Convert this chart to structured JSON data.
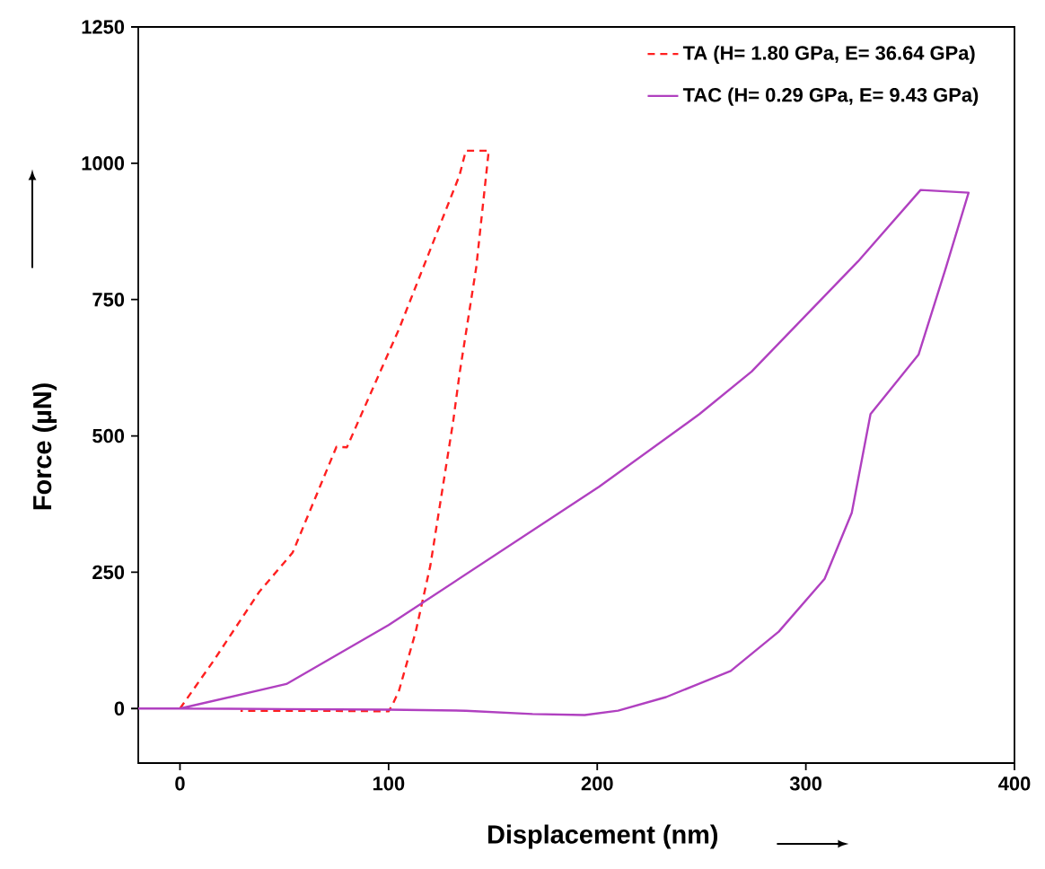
{
  "chart_data": {
    "type": "line",
    "xlabel": "Displacement (nm)",
    "ylabel": "Force (µN)",
    "xlim": [
      -20,
      400
    ],
    "ylim": [
      -100,
      1250
    ],
    "xticks": [
      0,
      100,
      200,
      300,
      400
    ],
    "yticks": [
      0,
      250,
      500,
      750,
      1000,
      1250
    ],
    "grid": false,
    "legend": "top right",
    "marker": "none",
    "series": [
      {
        "name": "TA  (H= 1.80 GPa, E= 36.64 GPa)",
        "color": "#ff2020",
        "line_style": "dashed",
        "x": [
          0,
          16,
          38,
          54,
          75,
          80,
          105,
          134,
          137,
          148,
          142,
          134,
          131,
          120,
          113,
          105,
          102,
          100,
          60,
          29
        ],
        "values": [
          0,
          87,
          214,
          286,
          480,
          479,
          696,
          978,
          1023,
          1023,
          809,
          614,
          528,
          262,
          141,
          33,
          8,
          -5,
          -4,
          -4
        ]
      },
      {
        "name": "TAC  (H= 0.29 GPa, E= 9.43 GPa)",
        "color": "#b040c0",
        "line_style": "solid",
        "x": [
          -20,
          0,
          51,
          100,
          201,
          249,
          274,
          325,
          355,
          378,
          367,
          354,
          331,
          322,
          309,
          287,
          264,
          233,
          210,
          194,
          169,
          137,
          100,
          50,
          0
        ],
        "values": [
          0,
          0,
          45,
          153,
          407,
          540,
          618,
          820,
          951,
          946,
          807,
          649,
          540,
          359,
          238,
          141,
          69,
          21,
          -4,
          -12,
          -10,
          -4,
          -2,
          -1,
          0
        ]
      }
    ]
  }
}
